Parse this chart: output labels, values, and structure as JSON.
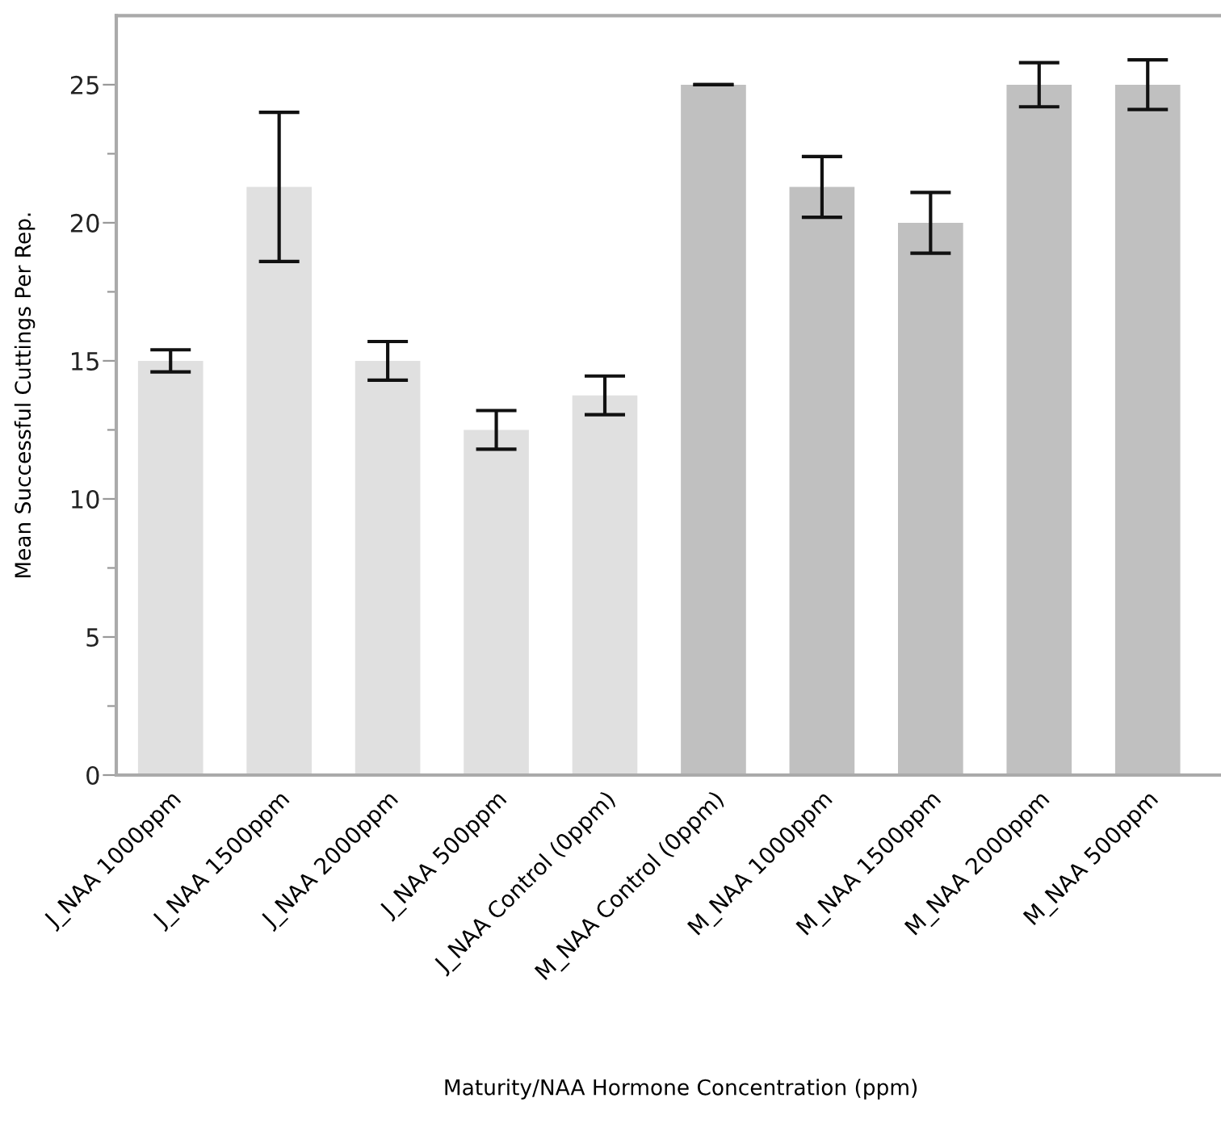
{
  "chart_data": {
    "type": "bar",
    "xlabel": "Maturity/NAA Hormone Concentration (ppm)",
    "ylabel": "Mean Successful Cuttings Per Rep.",
    "categories": [
      "J_NAA 1000ppm",
      "J_NAA 1500ppm",
      "J_NAA 2000ppm",
      "J_NAA 500ppm",
      "J_NAA Control (0ppm)",
      "M_NAA Control (0ppm)",
      "M_NAA 1000ppm",
      "M_NAA 1500ppm",
      "M_NAA 2000ppm",
      "M_NAA 500ppm"
    ],
    "values": [
      15,
      21.3,
      15,
      12.5,
      13.75,
      25,
      21.3,
      20,
      25,
      25
    ],
    "errors": [
      0.4,
      2.7,
      0.7,
      0.7,
      0.7,
      0,
      1.1,
      1.1,
      0.8,
      0.9
    ],
    "colors": [
      "#e0e0e0",
      "#e0e0e0",
      "#e0e0e0",
      "#e0e0e0",
      "#e0e0e0",
      "#c0c0c0",
      "#c0c0c0",
      "#c0c0c0",
      "#c0c0c0",
      "#c0c0c0"
    ],
    "ylim": [
      0,
      27.5
    ],
    "yticks": [
      0,
      {
        "value": 2.5,
        "label": null
      },
      5,
      {
        "value": 7.5,
        "label": null
      },
      10,
      {
        "value": 12.5,
        "label": null
      },
      15,
      {
        "value": 17.5,
        "label": null
      },
      20,
      {
        "value": 22.5,
        "label": null
      },
      25
    ],
    "grid": false
  }
}
